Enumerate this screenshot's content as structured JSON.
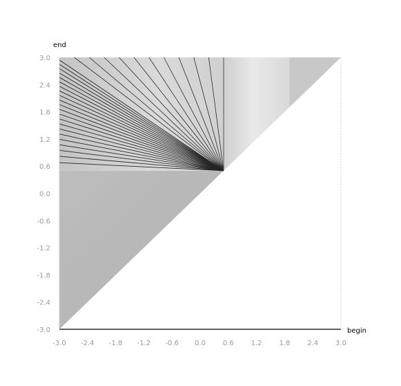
{
  "chart_data": {
    "type": "heatmap",
    "title": "",
    "xlabel": "begin",
    "ylabel": "end",
    "xlim": [
      -3.0,
      3.0
    ],
    "ylim": [
      -3.0,
      3.0
    ],
    "x_ticks": [
      "-3.0",
      "-2.4",
      "-1.8",
      "-1.2",
      "-0.6",
      "0.0",
      "0.6",
      "1.2",
      "1.8",
      "2.4",
      "3.0"
    ],
    "y_ticks": [
      "3.0",
      "2.4",
      "1.8",
      "1.2",
      "0.6",
      "0.0",
      "-0.6",
      "-1.2",
      "-1.8",
      "-2.4",
      "-3.0"
    ],
    "grid": false,
    "region": "end >= begin (upper-left triangle)",
    "focus_point": {
      "begin": 0.5,
      "end": 0.5
    },
    "ray_count": 22,
    "colors": {
      "fill": "#b9b9b9",
      "ray": "#262626",
      "axis": "#000000",
      "tick_text": "#9a9a9a"
    }
  }
}
